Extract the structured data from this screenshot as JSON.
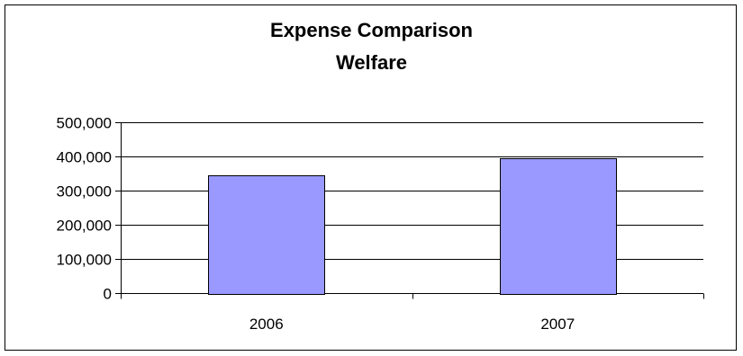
{
  "chart_data": {
    "type": "bar",
    "title": "Expense Comparison",
    "subtitle": "Welfare",
    "categories": [
      "2006",
      "2007"
    ],
    "values": [
      345000,
      395000
    ],
    "ylim": [
      0,
      500000
    ],
    "yticks": [
      0,
      100000,
      200000,
      300000,
      400000,
      500000
    ],
    "ytick_labels": [
      "0",
      "100,000",
      "200,000",
      "300,000",
      "400,000",
      "500,000"
    ],
    "grid": true,
    "legend": "none",
    "colors": {
      "bar_fill": "#9999ff",
      "bar_stroke": "#000000",
      "gridline": "#000000",
      "axis": "#000000"
    }
  }
}
